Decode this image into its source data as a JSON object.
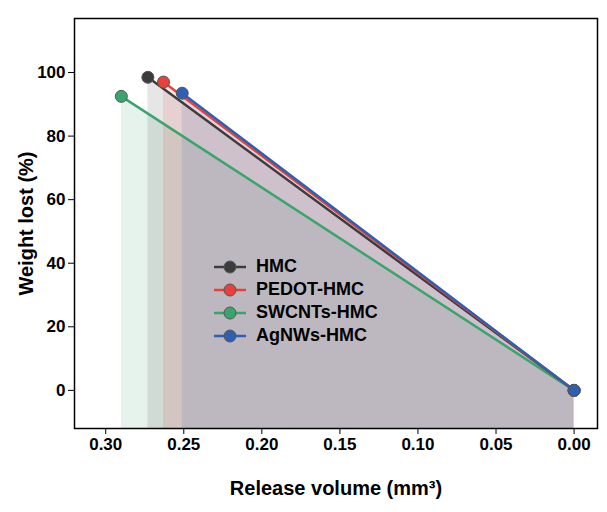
{
  "chart_data": {
    "type": "line",
    "x_label": "Release volume (mm³)",
    "y_label": "Weight lost (%)",
    "xlim": [
      0.32,
      -0.015
    ],
    "ylim": [
      -12,
      117
    ],
    "xticks": [
      {
        "value": 0.3,
        "label": "0.30"
      },
      {
        "value": 0.25,
        "label": "0.25"
      },
      {
        "value": 0.2,
        "label": "0.20"
      },
      {
        "value": 0.15,
        "label": "0.15"
      },
      {
        "value": 0.1,
        "label": "0.10"
      },
      {
        "value": 0.05,
        "label": "0.05"
      },
      {
        "value": 0,
        "label": "0.00"
      }
    ],
    "yticks": [
      0,
      20,
      40,
      60,
      80,
      100
    ],
    "grid": false,
    "legend": "left",
    "series": [
      {
        "name": "SWCNTs-HMC",
        "color": "#3aa56b",
        "x": [
          0.29,
          0
        ],
        "values": [
          92.5,
          0
        ],
        "marker": "circle",
        "line_style": "solid"
      },
      {
        "name": "HMC",
        "color": "#3c3c3c",
        "x": [
          0.273,
          0
        ],
        "values": [
          98.5,
          0
        ],
        "marker": "circle",
        "line_style": "solid"
      },
      {
        "name": "PEDOT-HMC",
        "color": "#e8413c",
        "x": [
          0.263,
          0
        ],
        "values": [
          97,
          0
        ],
        "marker": "circle",
        "line_style": "solid"
      },
      {
        "name": "AgNWs-HMC",
        "color": "#2f5fb3",
        "x": [
          0.251,
          0
        ],
        "values": [
          93.5,
          0
        ],
        "marker": "circle",
        "line_style": "solid"
      }
    ]
  }
}
